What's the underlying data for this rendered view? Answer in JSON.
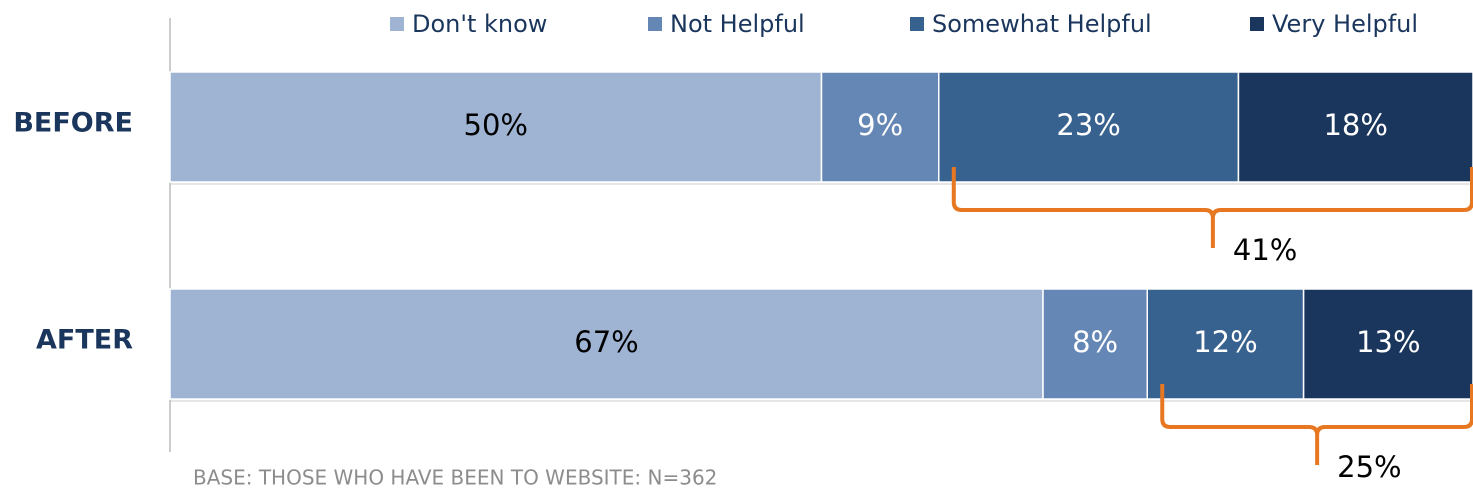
{
  "chart_data": {
    "type": "stacked-bar-horizontal",
    "categories": [
      "BEFORE",
      "AFTER"
    ],
    "series": [
      {
        "name": "Don't know",
        "color": "#9fb4d3",
        "values": [
          50,
          67
        ],
        "value_labels": [
          "50%",
          "67%"
        ]
      },
      {
        "name": "Not Helpful",
        "color": "#6587b5",
        "values": [
          9,
          8
        ],
        "value_labels": [
          "9%",
          "8%"
        ]
      },
      {
        "name": "Somewhat Helpful",
        "color": "#37618f",
        "values": [
          23,
          12
        ],
        "value_labels": [
          "23%",
          "12%"
        ]
      },
      {
        "name": "Very Helpful",
        "color": "#1b365d",
        "values": [
          18,
          13
        ],
        "value_labels": [
          "18%",
          "13%"
        ]
      }
    ],
    "xlim": [
      0,
      100
    ],
    "annotations": [
      {
        "label": "41%",
        "value": 41
      },
      {
        "label": "25%",
        "value": 25
      }
    ],
    "annotation_color": "#e87722",
    "footnote": "BASE: THOSE WHO HAVE BEEN TO WEBSITE: N=362"
  }
}
